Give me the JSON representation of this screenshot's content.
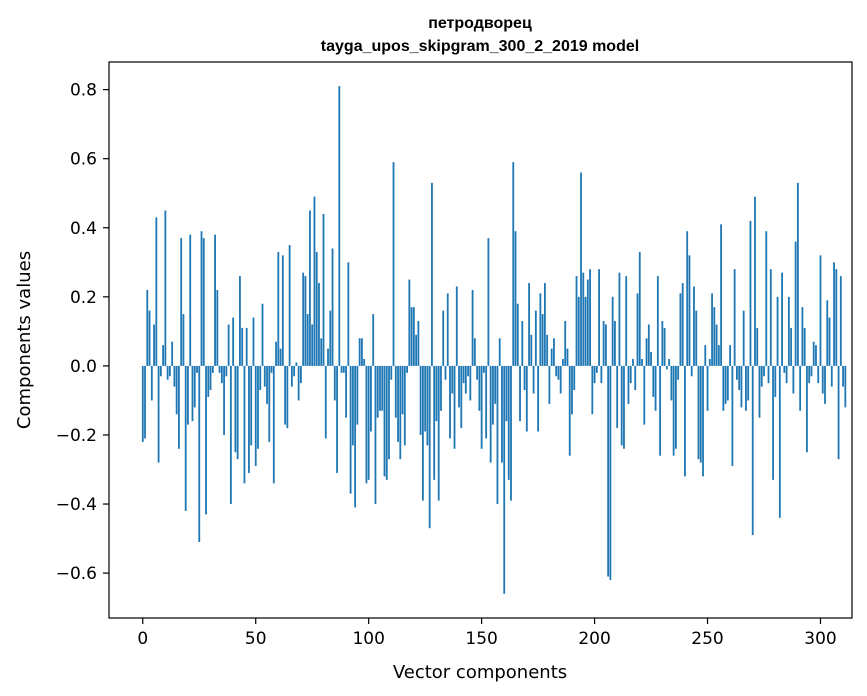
{
  "chart_data": {
    "type": "bar",
    "title": "петродворец",
    "subtitle": "tayga_upos_skipgram_300_2_2019 model",
    "xlabel": "Vector components",
    "ylabel": "Components values",
    "xlim": [
      -14.95,
      313.95
    ],
    "ylim": [
      -0.73,
      0.88
    ],
    "xticks": [
      0,
      50,
      100,
      150,
      200,
      250,
      300
    ],
    "xtick_labels": [
      "0",
      "50",
      "100",
      "150",
      "200",
      "250",
      "300"
    ],
    "yticks": [
      -0.6,
      -0.4,
      -0.2,
      0.0,
      0.2,
      0.4,
      0.6,
      0.8
    ],
    "ytick_labels": [
      "−0.6",
      "−0.4",
      "−0.2",
      "0.0",
      "0.2",
      "0.4",
      "0.6",
      "0.8"
    ],
    "bar_color": "#1f77b4",
    "values": [
      -0.22,
      -0.21,
      0.22,
      0.16,
      -0.1,
      0.12,
      0.43,
      -0.28,
      -0.03,
      0.06,
      0.45,
      -0.04,
      -0.03,
      0.07,
      -0.06,
      -0.14,
      -0.24,
      0.37,
      0.15,
      -0.42,
      -0.17,
      0.38,
      -0.16,
      -0.12,
      -0.02,
      -0.51,
      0.39,
      0.37,
      -0.43,
      -0.09,
      -0.07,
      -0.02,
      0.38,
      0.22,
      -0.02,
      -0.05,
      -0.2,
      -0.03,
      0.12,
      -0.4,
      0.14,
      -0.25,
      -0.27,
      0.26,
      0.11,
      -0.34,
      0.11,
      -0.31,
      -0.23,
      0.14,
      -0.29,
      -0.24,
      -0.07,
      0.18,
      -0.06,
      -0.11,
      -0.22,
      -0.02,
      -0.34,
      0.07,
      0.33,
      0.05,
      0.32,
      -0.17,
      -0.18,
      0.35,
      -0.06,
      -0.03,
      0.01,
      -0.1,
      -0.05,
      0.27,
      0.26,
      0.15,
      0.45,
      0.12,
      0.49,
      0.33,
      0.24,
      0.08,
      0.44,
      -0.21,
      0.05,
      0.16,
      0.34,
      -0.1,
      -0.31,
      0.81,
      -0.02,
      -0.02,
      -0.15,
      0.3,
      -0.37,
      -0.23,
      -0.41,
      -0.17,
      0.08,
      0.08,
      0.02,
      -0.34,
      -0.33,
      -0.19,
      0.15,
      -0.4,
      -0.15,
      -0.13,
      -0.13,
      -0.32,
      -0.33,
      -0.27,
      -0.04,
      0.59,
      -0.15,
      -0.22,
      -0.27,
      -0.14,
      -0.23,
      -0.02,
      0.25,
      0.17,
      0.17,
      0.09,
      0.13,
      -0.2,
      -0.39,
      -0.19,
      -0.23,
      -0.47,
      0.53,
      -0.33,
      -0.16,
      -0.39,
      -0.13,
      0.16,
      -0.04,
      0.21,
      -0.21,
      -0.08,
      -0.24,
      0.23,
      -0.12,
      -0.18,
      -0.05,
      -0.08,
      -0.03,
      -0.1,
      0.22,
      0.08,
      -0.04,
      -0.13,
      -0.24,
      -0.02,
      -0.21,
      0.37,
      -0.28,
      -0.17,
      -0.11,
      -0.4,
      0.08,
      -0.28,
      -0.66,
      -0.16,
      -0.33,
      -0.39,
      0.59,
      0.39,
      0.18,
      -0.16,
      0.13,
      -0.07,
      -0.19,
      0.24,
      0.09,
      -0.08,
      0.16,
      -0.19,
      0.21,
      0.15,
      0.24,
      0.09,
      -0.11,
      0.05,
      0.08,
      -0.03,
      -0.04,
      -0.08,
      0.02,
      0.13,
      0.05,
      -0.26,
      -0.14,
      -0.07,
      0.26,
      0.2,
      0.56,
      0.27,
      0.2,
      0.25,
      0.28,
      -0.14,
      -0.05,
      -0.02,
      0.28,
      -0.05,
      0.13,
      0.12,
      -0.61,
      -0.62,
      0.2,
      0.13,
      -0.18,
      0.27,
      -0.23,
      -0.24,
      0.26,
      -0.11,
      -0.05,
      0.02,
      -0.07,
      0.21,
      0.33,
      0.02,
      -0.17,
      0.08,
      0.12,
      0.04,
      -0.09,
      -0.13,
      0.26,
      -0.26,
      0.13,
      0.11,
      -0.01,
      0.02,
      -0.1,
      -0.26,
      -0.24,
      -0.04,
      0.21,
      0.24,
      -0.32,
      0.39,
      0.32,
      -0.03,
      0.23,
      0.16,
      -0.27,
      -0.28,
      -0.32,
      0.06,
      -0.13,
      0.02,
      0.21,
      0.17,
      0.12,
      0.06,
      0.41,
      -0.13,
      -0.11,
      -0.1,
      0.06,
      -0.29,
      0.28,
      -0.04,
      -0.07,
      -0.12,
      0.16,
      -0.13,
      -0.1,
      0.42,
      -0.49,
      0.49,
      0.11,
      -0.15,
      -0.06,
      -0.03,
      0.39,
      -0.05,
      0.28,
      -0.33,
      -0.09,
      0.2,
      -0.44,
      0.27,
      -0.02,
      -0.05,
      0.2,
      0.11,
      -0.08,
      0.36,
      0.53,
      -0.13,
      0.17,
      0.11,
      -0.25,
      -0.05,
      -0.03,
      0.07,
      0.06,
      -0.05,
      0.32,
      -0.08,
      -0.11,
      0.19,
      0.14,
      -0.06,
      0.3,
      0.28,
      -0.27,
      0.26,
      -0.06,
      -0.12
    ]
  }
}
